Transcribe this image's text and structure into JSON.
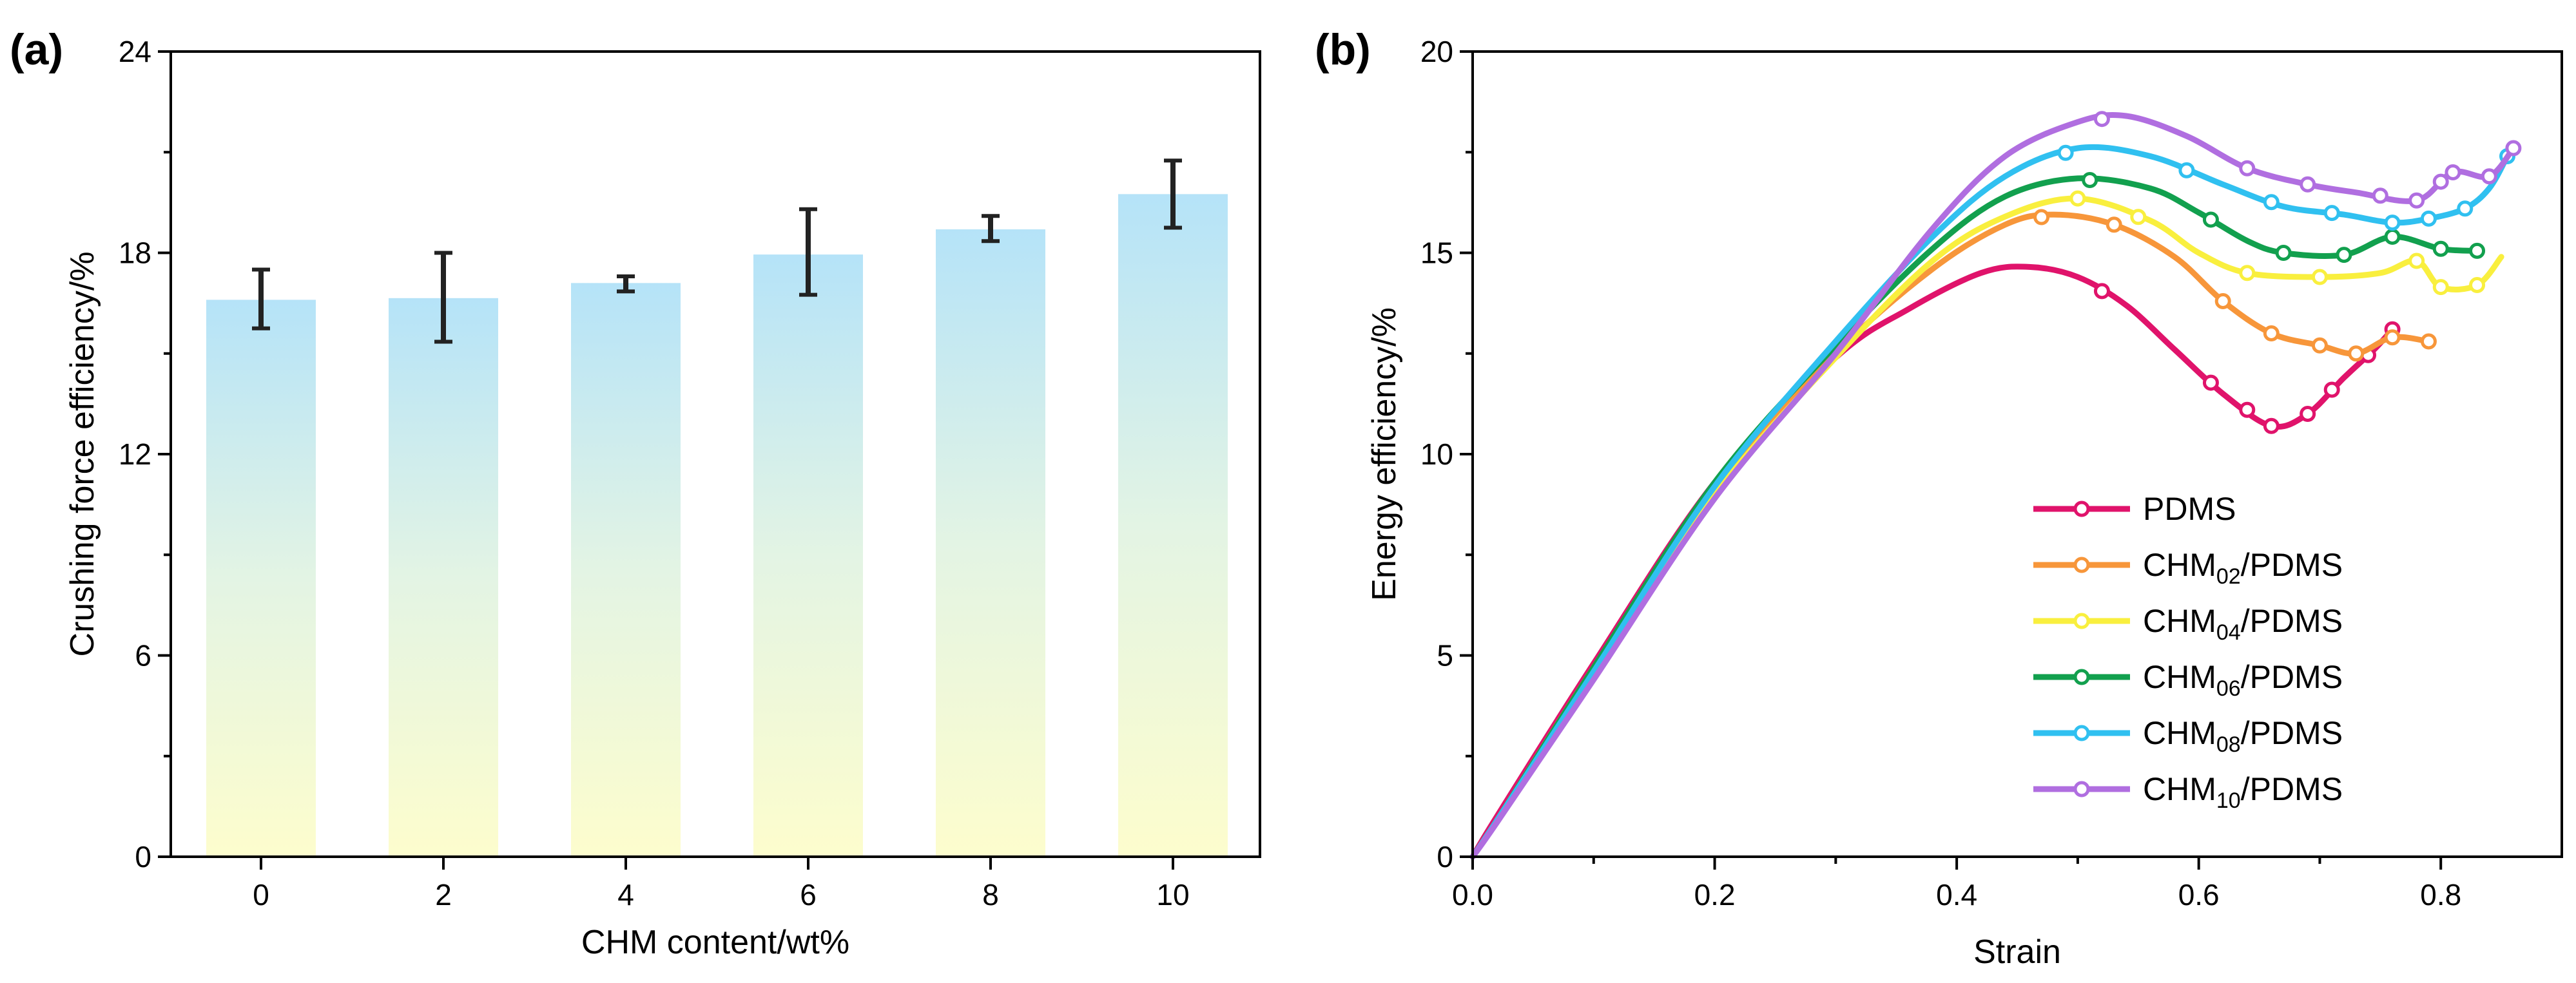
{
  "chart_data": [
    {
      "type": "bar",
      "panel_label": "(a)",
      "title": "",
      "xlabel": "CHM content/wt%",
      "ylabel": "Crushing force efficiency/%",
      "categories": [
        "0",
        "2",
        "4",
        "6",
        "8",
        "10"
      ],
      "values": [
        16.6,
        16.65,
        17.1,
        17.95,
        18.7,
        19.75
      ],
      "error_bars": [
        {
          "low": 15.75,
          "high": 17.5
        },
        {
          "low": 15.35,
          "high": 18.0
        },
        {
          "low": 16.85,
          "high": 17.3
        },
        {
          "low": 16.75,
          "high": 19.3
        },
        {
          "low": 18.35,
          "high": 19.1
        },
        {
          "low": 18.75,
          "high": 20.75
        }
      ],
      "ylim": [
        0,
        24
      ],
      "yticks": [
        "0",
        "6",
        "12",
        "18",
        "24"
      ],
      "bar_gradient_colors": {
        "top": "#b5e3f8",
        "middle": "#e3f4e4",
        "bottom": "#fdfdcd"
      },
      "grid": false
    },
    {
      "type": "line",
      "panel_label": "(b)",
      "title": "",
      "xlabel": "Strain",
      "ylabel": "Energy efficiency/%",
      "xlim": [
        0,
        0.9
      ],
      "ylim": [
        0,
        20
      ],
      "xticks": [
        "0.0",
        "0.2",
        "0.4",
        "0.6",
        "0.8"
      ],
      "yticks": [
        "0",
        "5",
        "10",
        "15",
        "20"
      ],
      "legend_position": "lower-right",
      "grid": false,
      "series": [
        {
          "name": "PDMS",
          "legend_main": "PDMS",
          "legend_sub": "",
          "legend_tail": "",
          "color": "#e0136b",
          "points": [
            [
              0,
              0
            ],
            [
              0.02,
              1.0
            ],
            [
              0.1,
              4.8
            ],
            [
              0.2,
              9.3
            ],
            [
              0.3,
              12.4
            ],
            [
              0.36,
              13.6
            ],
            [
              0.42,
              14.5
            ],
            [
              0.46,
              14.65
            ],
            [
              0.5,
              14.4
            ],
            [
              0.54,
              13.7
            ],
            [
              0.58,
              12.6
            ],
            [
              0.62,
              11.5
            ],
            [
              0.66,
              10.7
            ],
            [
              0.69,
              11.0
            ],
            [
              0.72,
              11.9
            ],
            [
              0.745,
              12.6
            ],
            [
              0.76,
              13.1
            ]
          ],
          "markers": [
            0.52,
            0.61,
            0.64,
            0.66,
            0.69,
            0.71,
            0.74,
            0.76
          ]
        },
        {
          "name": "CHM02/PDMS",
          "legend_main": "CHM",
          "legend_sub": "02",
          "legend_tail": "/PDMS",
          "color": "#f7963a",
          "points": [
            [
              0,
              0
            ],
            [
              0.02,
              0.9
            ],
            [
              0.1,
              4.7
            ],
            [
              0.2,
              9.2
            ],
            [
              0.3,
              12.5
            ],
            [
              0.38,
              14.6
            ],
            [
              0.44,
              15.7
            ],
            [
              0.48,
              15.95
            ],
            [
              0.53,
              15.7
            ],
            [
              0.58,
              14.9
            ],
            [
              0.62,
              13.8
            ],
            [
              0.66,
              13.0
            ],
            [
              0.7,
              12.7
            ],
            [
              0.73,
              12.5
            ],
            [
              0.76,
              12.9
            ],
            [
              0.79,
              12.8
            ]
          ],
          "markers": [
            0.47,
            0.53,
            0.62,
            0.66,
            0.7,
            0.73,
            0.76,
            0.79
          ]
        },
        {
          "name": "CHM04/PDMS",
          "legend_main": "CHM",
          "legend_sub": "04",
          "legend_tail": "/PDMS",
          "color": "#f9ef3e",
          "points": [
            [
              0,
              0
            ],
            [
              0.02,
              0.9
            ],
            [
              0.1,
              4.6
            ],
            [
              0.2,
              9.0
            ],
            [
              0.3,
              12.4
            ],
            [
              0.38,
              14.8
            ],
            [
              0.44,
              15.9
            ],
            [
              0.5,
              16.35
            ],
            [
              0.56,
              15.8
            ],
            [
              0.6,
              15.0
            ],
            [
              0.64,
              14.5
            ],
            [
              0.7,
              14.4
            ],
            [
              0.75,
              14.5
            ],
            [
              0.78,
              14.8
            ],
            [
              0.8,
              14.15
            ],
            [
              0.83,
              14.2
            ],
            [
              0.85,
              14.9
            ]
          ],
          "markers": [
            0.5,
            0.55,
            0.64,
            0.7,
            0.78,
            0.8,
            0.83
          ]
        },
        {
          "name": "CHM06/PDMS",
          "legend_main": "CHM",
          "legend_sub": "06",
          "legend_tail": "/PDMS",
          "color": "#12a04e",
          "points": [
            [
              0,
              0
            ],
            [
              0.02,
              0.9
            ],
            [
              0.1,
              4.7
            ],
            [
              0.2,
              9.3
            ],
            [
              0.3,
              12.7
            ],
            [
              0.38,
              15.1
            ],
            [
              0.44,
              16.4
            ],
            [
              0.5,
              16.85
            ],
            [
              0.56,
              16.6
            ],
            [
              0.6,
              16.0
            ],
            [
              0.64,
              15.3
            ],
            [
              0.67,
              15.0
            ],
            [
              0.72,
              14.95
            ],
            [
              0.76,
              15.4
            ],
            [
              0.8,
              15.1
            ],
            [
              0.83,
              15.05
            ]
          ],
          "markers": [
            0.51,
            0.61,
            0.67,
            0.72,
            0.76,
            0.8,
            0.83
          ]
        },
        {
          "name": "CHM08/PDMS",
          "legend_main": "CHM",
          "legend_sub": "08",
          "legend_tail": "/PDMS",
          "color": "#30c0f0",
          "points": [
            [
              0,
              0
            ],
            [
              0.02,
              0.9
            ],
            [
              0.1,
              4.6
            ],
            [
              0.2,
              9.2
            ],
            [
              0.3,
              12.8
            ],
            [
              0.38,
              15.4
            ],
            [
              0.44,
              16.9
            ],
            [
              0.5,
              17.6
            ],
            [
              0.56,
              17.4
            ],
            [
              0.62,
              16.7
            ],
            [
              0.67,
              16.15
            ],
            [
              0.72,
              15.95
            ],
            [
              0.76,
              15.75
            ],
            [
              0.79,
              15.85
            ],
            [
              0.82,
              16.1
            ],
            [
              0.84,
              16.6
            ],
            [
              0.855,
              17.4
            ]
          ],
          "markers": [
            0.49,
            0.59,
            0.66,
            0.71,
            0.76,
            0.79,
            0.82,
            0.855
          ]
        },
        {
          "name": "CHM10/PDMS",
          "legend_main": "CHM",
          "legend_sub": "10",
          "legend_tail": "/PDMS",
          "color": "#b06ee0",
          "points": [
            [
              0,
              0
            ],
            [
              0.02,
              0.85
            ],
            [
              0.1,
              4.4
            ],
            [
              0.2,
              8.9
            ],
            [
              0.3,
              12.5
            ],
            [
              0.38,
              15.6
            ],
            [
              0.44,
              17.4
            ],
            [
              0.5,
              18.25
            ],
            [
              0.54,
              18.4
            ],
            [
              0.59,
              17.9
            ],
            [
              0.64,
              17.1
            ],
            [
              0.69,
              16.7
            ],
            [
              0.73,
              16.5
            ],
            [
              0.78,
              16.3
            ],
            [
              0.81,
              17.0
            ],
            [
              0.84,
              16.9
            ],
            [
              0.86,
              17.6
            ]
          ],
          "markers": [
            0.52,
            0.64,
            0.69,
            0.75,
            0.78,
            0.8,
            0.81,
            0.84,
            0.86
          ]
        }
      ]
    }
  ]
}
